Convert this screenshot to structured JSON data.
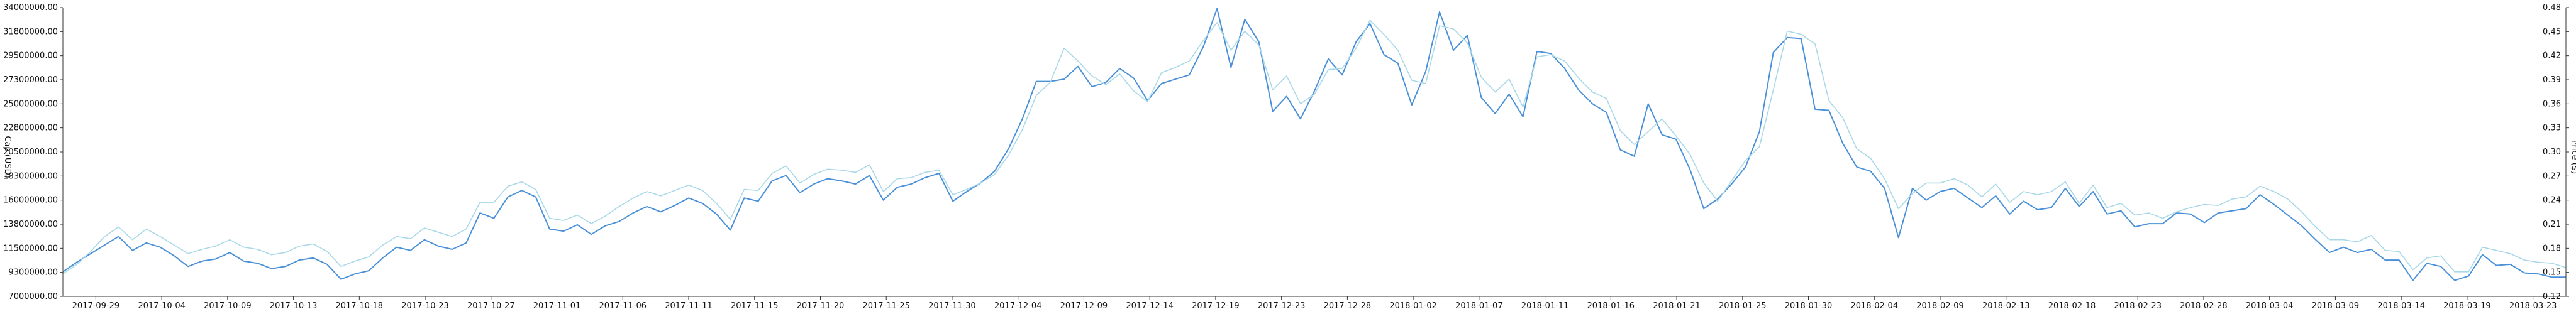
{
  "chart_data": {
    "type": "line",
    "title": "",
    "y_left": {
      "label": "Cap (USD)",
      "ticks": [
        "34000000.00",
        "31800000.00",
        "29500000.00",
        "27300000.00",
        "25000000.00",
        "22800000.00",
        "20500000.00",
        "18300000.00",
        "16000000.00",
        "13800000.00",
        "11500000.00",
        "9300000.00",
        "7000000.00"
      ],
      "range": [
        7000000,
        34000000
      ]
    },
    "y_right": {
      "label": "Price ($)",
      "ticks": [
        "0.48",
        "0.45",
        "0.42",
        "0.39",
        "0.36",
        "0.33",
        "0.30",
        "0.27",
        "0.24",
        "0.21",
        "0.18",
        "0.15",
        "0.12"
      ],
      "range": [
        0.12,
        0.48
      ]
    },
    "x_ticks": [
      "2017-09-29",
      "2017-10-04",
      "2017-10-09",
      "2017-10-13",
      "2017-10-18",
      "2017-10-23",
      "2017-10-27",
      "2017-11-01",
      "2017-11-06",
      "2017-11-11",
      "2017-11-15",
      "2017-11-20",
      "2017-11-25",
      "2017-11-30",
      "2017-12-04",
      "2017-12-09",
      "2017-12-14",
      "2017-12-19",
      "2017-12-23",
      "2017-12-28",
      "2018-01-02",
      "2018-01-07",
      "2018-01-11",
      "2018-01-16",
      "2018-01-21",
      "2018-01-25",
      "2018-01-30",
      "2018-02-04",
      "2018-02-09",
      "2018-02-13",
      "2018-02-18",
      "2018-02-23",
      "2018-02-28",
      "2018-03-04",
      "2018-03-09",
      "2018-03-14",
      "2018-03-19",
      "2018-03-23"
    ],
    "series": [
      {
        "axis": "left",
        "color": "#4a90d9",
        "values": [
          9300000,
          10200000,
          11000000,
          11800000,
          12600000,
          11300000,
          12000000,
          11600000,
          10800000,
          9800000,
          10300000,
          10500000,
          11100000,
          10300000,
          10100000,
          9600000,
          9800000,
          10400000,
          10600000,
          10000000,
          8600000,
          9100000,
          9400000,
          10600000,
          11600000,
          11300000,
          12300000,
          11700000,
          11400000,
          12000000,
          14800000,
          14300000,
          16300000,
          16900000,
          16300000,
          13300000,
          13100000,
          13700000,
          12800000,
          13600000,
          14000000,
          14800000,
          15400000,
          14900000,
          15500000,
          16200000,
          15700000,
          14700000,
          13200000,
          16200000,
          15900000,
          17800000,
          18300000,
          16700000,
          17500000,
          18000000,
          17800000,
          17500000,
          18300000,
          16000000,
          17200000,
          17500000,
          18100000,
          18500000,
          15900000,
          16800000,
          17600000,
          18700000,
          20800000,
          23600000,
          27100000,
          27100000,
          27300000,
          28500000,
          26600000,
          27000000,
          28300000,
          27400000,
          25300000,
          26900000,
          27300000,
          27700000,
          30300000,
          33900000,
          28400000,
          32900000,
          30800000,
          24300000,
          25700000,
          23600000,
          26200000,
          29200000,
          27700000,
          30800000,
          32500000,
          29600000,
          28800000,
          24900000,
          28000000,
          33600000,
          30000000,
          31400000,
          25600000,
          24100000,
          25900000,
          23800000,
          29900000,
          29700000,
          28300000,
          26300000,
          25000000,
          24200000,
          20700000,
          20100000,
          25000000,
          22100000,
          21700000,
          18900000,
          15200000,
          16100000,
          17500000,
          19100000,
          22400000,
          29800000,
          31200000,
          31100000,
          24500000,
          24400000,
          21300000,
          19100000,
          18700000,
          17100000,
          12500000,
          17100000,
          16000000,
          16800000,
          17100000,
          16200000,
          15300000,
          16400000,
          14700000,
          15900000,
          15100000,
          15300000,
          17100000,
          15400000,
          16800000,
          14700000,
          15000000,
          13500000,
          13800000,
          13800000,
          14800000,
          14700000,
          13900000,
          14800000,
          15000000,
          15200000,
          16500000,
          15600000,
          14600000,
          13600000,
          12300000,
          11100000,
          11600000,
          11100000,
          11400000,
          10400000,
          10400000,
          8500000,
          10100000,
          9800000,
          8500000,
          8900000,
          10900000,
          9900000,
          10000000,
          9200000,
          9100000,
          8800000,
          8800000
        ],
        "name": ""
      },
      {
        "axis": "left",
        "color": "#a8d8e8",
        "values": [
          9100000,
          10000000,
          11200000,
          12600000,
          13500000,
          12300000,
          13300000,
          12600000,
          11800000,
          11000000,
          11400000,
          11700000,
          12300000,
          11600000,
          11400000,
          10900000,
          11100000,
          11700000,
          11900000,
          11200000,
          9800000,
          10300000,
          10700000,
          11800000,
          12600000,
          12400000,
          13400000,
          13000000,
          12600000,
          13300000,
          15800000,
          15800000,
          17300000,
          17700000,
          17000000,
          14300000,
          14100000,
          14600000,
          13800000,
          14500000,
          15400000,
          16200000,
          16800000,
          16400000,
          16900000,
          17400000,
          16900000,
          15700000,
          14200000,
          17000000,
          16900000,
          18500000,
          19200000,
          17600000,
          18400000,
          18900000,
          18800000,
          18600000,
          19300000,
          16800000,
          18000000,
          18100000,
          18600000,
          18800000,
          16500000,
          17000000,
          17600000,
          18400000,
          20200000,
          22600000,
          25800000,
          27000000,
          30200000,
          29000000,
          27600000,
          26800000,
          27800000,
          26200000,
          25200000,
          27900000,
          28400000,
          29000000,
          30900000,
          32600000,
          30000000,
          31800000,
          30500000,
          26300000,
          27600000,
          25000000,
          25900000,
          28200000,
          28300000,
          30200000,
          32800000,
          31500000,
          30000000,
          27200000,
          26900000,
          32300000,
          32000000,
          30700000,
          27500000,
          26100000,
          27300000,
          24700000,
          29400000,
          29600000,
          29000000,
          27400000,
          26100000,
          25500000,
          22500000,
          21200000,
          22400000,
          23600000,
          22000000,
          20300000,
          17600000,
          15900000,
          17800000,
          19700000,
          21000000,
          26300000,
          31800000,
          31500000,
          30600000,
          25300000,
          23700000,
          20800000,
          19900000,
          18000000,
          15200000,
          16600000,
          17600000,
          17600000,
          18000000,
          17400000,
          16300000,
          17500000,
          15800000,
          16800000,
          16500000,
          16800000,
          17700000,
          15700000,
          17400000,
          15300000,
          15700000,
          14600000,
          14800000,
          14300000,
          14900000,
          15300000,
          15600000,
          15500000,
          16100000,
          16300000,
          17300000,
          16800000,
          16100000,
          14900000,
          13500000,
          12300000,
          12300000,
          12100000,
          12700000,
          11300000,
          11200000,
          9500000,
          10600000,
          10800000,
          9300000,
          9300000,
          11600000,
          11300000,
          11000000,
          10400000,
          10200000,
          10100000,
          9700000
        ],
        "name": ""
      }
    ],
    "grid": false,
    "legend": "none"
  }
}
